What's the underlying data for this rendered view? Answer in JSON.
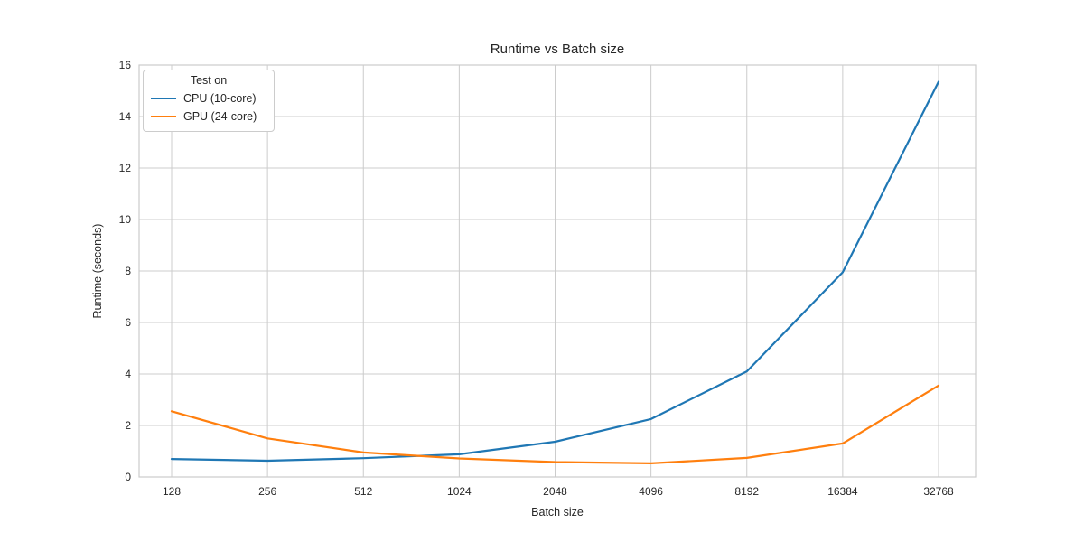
{
  "chart_data": {
    "type": "line",
    "title": "Runtime vs Batch size",
    "xlabel": "Batch size",
    "ylabel": "Runtime (seconds)",
    "x_scale": "log2",
    "categories": [
      "128",
      "256",
      "512",
      "1024",
      "2048",
      "4096",
      "8192",
      "16384",
      "32768"
    ],
    "yticks": [
      "0",
      "2",
      "4",
      "6",
      "8",
      "10",
      "12",
      "14",
      "16"
    ],
    "ylim": [
      0,
      16
    ],
    "grid": "both",
    "legend": {
      "title": "Test on",
      "position": "upper-left"
    },
    "series": [
      {
        "name": "CPU (10-core)",
        "color": "#1f77b4",
        "values": [
          0.7,
          0.63,
          0.73,
          0.88,
          1.37,
          2.25,
          4.1,
          7.95,
          15.35
        ]
      },
      {
        "name": "GPU (24-core)",
        "color": "#ff7f0e",
        "values": [
          2.55,
          1.5,
          0.95,
          0.72,
          0.58,
          0.53,
          0.74,
          1.3,
          3.55
        ]
      }
    ],
    "colors": {
      "grid": "#cccccc",
      "border": "#cccccc",
      "text": "#262626",
      "background": "#ffffff"
    }
  }
}
